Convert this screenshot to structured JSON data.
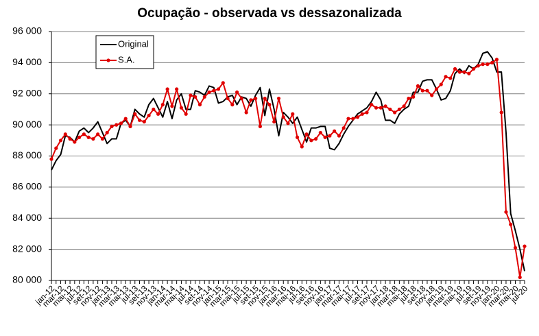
{
  "chart_data": {
    "type": "line",
    "title": "Ocupação - observada vs dessazonalizada",
    "categories": [
      "jan-12",
      null,
      "mar-12",
      null,
      "mai-12",
      null,
      "jul-12",
      null,
      "set-12",
      null,
      "nov-12",
      null,
      "jan-13",
      null,
      "mar-13",
      null,
      "mai-13",
      null,
      "jul-13",
      null,
      "set-13",
      null,
      "nov-13",
      null,
      "jan-14",
      null,
      "mar-14",
      null,
      "mai-14",
      null,
      "jul-14",
      null,
      "set-14",
      null,
      "nov-14",
      null,
      "jan-15",
      null,
      "mar-15",
      null,
      "mai-15",
      null,
      "jul-15",
      null,
      "set-15",
      null,
      "nov-15",
      null,
      "jan-16",
      null,
      "mar-16",
      null,
      "mai-16",
      null,
      "jul-16",
      null,
      "set-16",
      null,
      "nov-16",
      null,
      "jan-17",
      null,
      "mar-17",
      null,
      "mai-17",
      null,
      "jul-17",
      null,
      "set-17",
      null,
      "nov-17",
      null,
      "jan-18",
      null,
      "mar-18",
      null,
      "mai-18",
      null,
      "jul-18",
      null,
      "set-18",
      null,
      "nov-18",
      null,
      "jan-19",
      null,
      "mar-19",
      null,
      "mai-19",
      null,
      "jul-19",
      null,
      "set-19",
      null,
      "nov-19",
      null,
      "jan-20",
      null,
      "mar-20",
      null,
      "mai-20",
      null,
      "jul-20"
    ],
    "series": [
      {
        "name": "Original",
        "color": "#000000",
        "markers": false,
        "values": [
          87100,
          87700,
          88100,
          89300,
          89200,
          88900,
          89600,
          89800,
          89500,
          89800,
          90200,
          89500,
          88800,
          89100,
          89100,
          90100,
          90300,
          89900,
          91000,
          90700,
          90500,
          91300,
          91700,
          91100,
          90500,
          91500,
          90400,
          91600,
          92000,
          91000,
          91000,
          92200,
          92100,
          91900,
          92500,
          92400,
          91400,
          91500,
          91800,
          91900,
          91300,
          91800,
          91700,
          91200,
          91900,
          92400,
          90600,
          92300,
          91000,
          89300,
          90800,
          90500,
          90100,
          90500,
          89700,
          88900,
          89800,
          89800,
          89900,
          89900,
          88500,
          88400,
          88800,
          89400,
          89900,
          90300,
          90700,
          90900,
          91100,
          91500,
          92100,
          91600,
          90300,
          90300,
          90100,
          90700,
          91000,
          91200,
          92100,
          92100,
          92800,
          92900,
          92900,
          92300,
          91600,
          91700,
          92200,
          93300,
          93600,
          93300,
          93800,
          93600,
          93900,
          94600,
          94700,
          94300,
          93400,
          93400,
          89500,
          84300,
          83200,
          82000,
          80600
        ]
      },
      {
        "name": "S.A.",
        "color": "#e00000",
        "markers": true,
        "values": [
          87800,
          88500,
          89000,
          89400,
          89100,
          88900,
          89200,
          89400,
          89200,
          89100,
          89400,
          89100,
          89500,
          89900,
          90000,
          90100,
          90400,
          89900,
          90700,
          90300,
          90200,
          90600,
          91000,
          90700,
          91300,
          92300,
          91200,
          92300,
          91100,
          90700,
          91900,
          91800,
          91300,
          91800,
          92100,
          92200,
          92300,
          92700,
          91700,
          91300,
          92100,
          91700,
          90800,
          91600,
          91700,
          89900,
          91700,
          91300,
          90200,
          91700,
          90500,
          90100,
          90700,
          89200,
          88600,
          89400,
          89000,
          89100,
          89500,
          89200,
          89300,
          89600,
          89300,
          89800,
          90400,
          90400,
          90500,
          90700,
          90800,
          91300,
          91100,
          91100,
          91200,
          91000,
          90800,
          91000,
          91200,
          91700,
          91800,
          92500,
          92200,
          92200,
          91900,
          92300,
          92600,
          93100,
          93000,
          93600,
          93400,
          93400,
          93300,
          93600,
          93800,
          93900,
          93900,
          94000,
          94200,
          90800,
          84400,
          83600,
          82100,
          80200,
          82200
        ]
      }
    ],
    "ylim": [
      80000,
      96000
    ],
    "yticks": [
      {
        "value": 80000,
        "label": "80 000"
      },
      {
        "value": 82000,
        "label": "82 000"
      },
      {
        "value": 84000,
        "label": "84 000"
      },
      {
        "value": 86000,
        "label": "86 000"
      },
      {
        "value": 88000,
        "label": "88 000"
      },
      {
        "value": 90000,
        "label": "90 000"
      },
      {
        "value": 92000,
        "label": "92 000"
      },
      {
        "value": 94000,
        "label": "94 000"
      },
      {
        "value": 96000,
        "label": "96 000"
      }
    ],
    "grid": true,
    "legend": "upper left"
  }
}
